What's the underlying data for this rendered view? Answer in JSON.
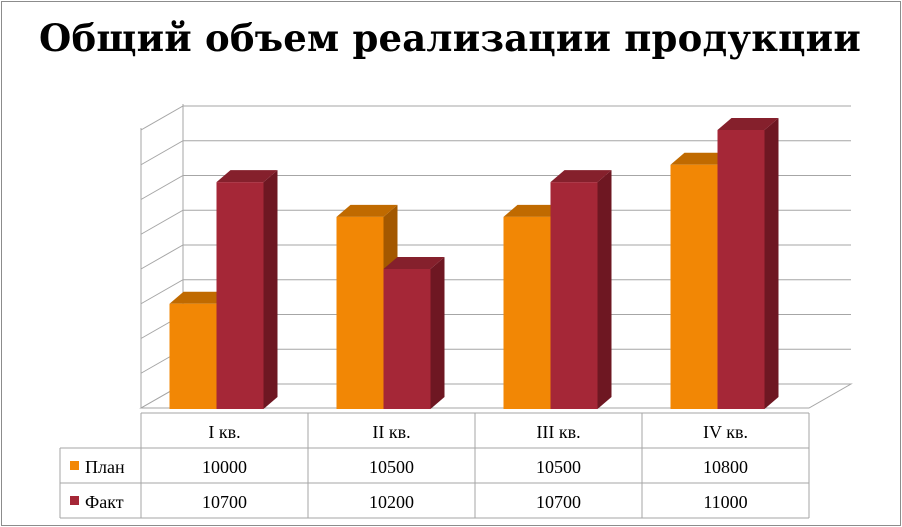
{
  "chart_data": {
    "type": "bar",
    "title": "Общий объем реализации продукции",
    "categories": [
      "I кв.",
      "II кв.",
      "III кв.",
      "IV кв."
    ],
    "series": [
      {
        "name": "План",
        "values": [
          10000,
          10500,
          10500,
          10800
        ],
        "color": "#F28705",
        "side_color": "#A35800",
        "top_color": "#C06A00"
      },
      {
        "name": "Факт",
        "values": [
          10700,
          10200,
          10700,
          11000
        ],
        "color": "#A52737",
        "side_color": "#6E1722",
        "top_color": "#85202C"
      }
    ],
    "ylim": [
      9400,
      11000
    ],
    "ytick_step": 200,
    "grid": true,
    "legend": "data-table",
    "data_table": true
  }
}
